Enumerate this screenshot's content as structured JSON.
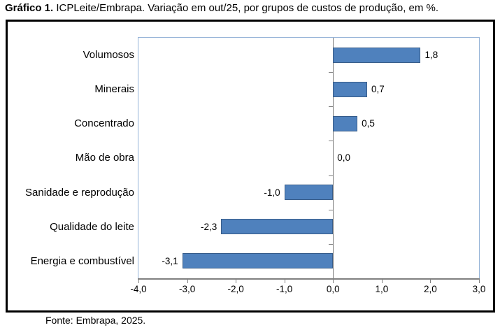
{
  "title": {
    "prefix": "Gráfico 1.",
    "rest": " ICPLeite/Embrapa. Variação em out/25, por grupos de custos de produção, em %."
  },
  "footer": "Fonte: Embrapa, 2025.",
  "chart_data": {
    "type": "bar",
    "orientation": "horizontal",
    "title": "Gráfico 1. ICPLeite/Embrapa. Variação em out/25, por grupos de custos de produção, em %.",
    "source": "Fonte: Embrapa, 2025.",
    "categories": [
      "Volumosos",
      "Minerais",
      "Concentrado",
      "Mão de obra",
      "Sanidade e reprodução",
      "Qualidade do leite",
      "Energia e combustível"
    ],
    "values": [
      1.8,
      0.7,
      0.5,
      0.0,
      -1.0,
      -2.3,
      -3.1
    ],
    "value_labels": [
      "1,8",
      "0,7",
      "0,5",
      "0,0",
      "-1,0",
      "-2,3",
      "-3,1"
    ],
    "xlim": [
      -4.0,
      3.0
    ],
    "x_ticks": [
      -4.0,
      -3.0,
      -2.0,
      -1.0,
      0.0,
      1.0,
      2.0,
      3.0
    ],
    "x_tick_labels": [
      "-4,0",
      "-3,0",
      "-2,0",
      "-1,0",
      "0,0",
      "1,0",
      "2,0",
      "3,0"
    ],
    "xlabel": "",
    "ylabel": "",
    "grid": false,
    "legend": false,
    "colors": {
      "bar_fill": "#4F81BD",
      "bar_border": "#385D8A",
      "plot_border": "#95B3D7",
      "axis": "#808080",
      "text": "#000000",
      "frame_border": "#000000"
    }
  }
}
